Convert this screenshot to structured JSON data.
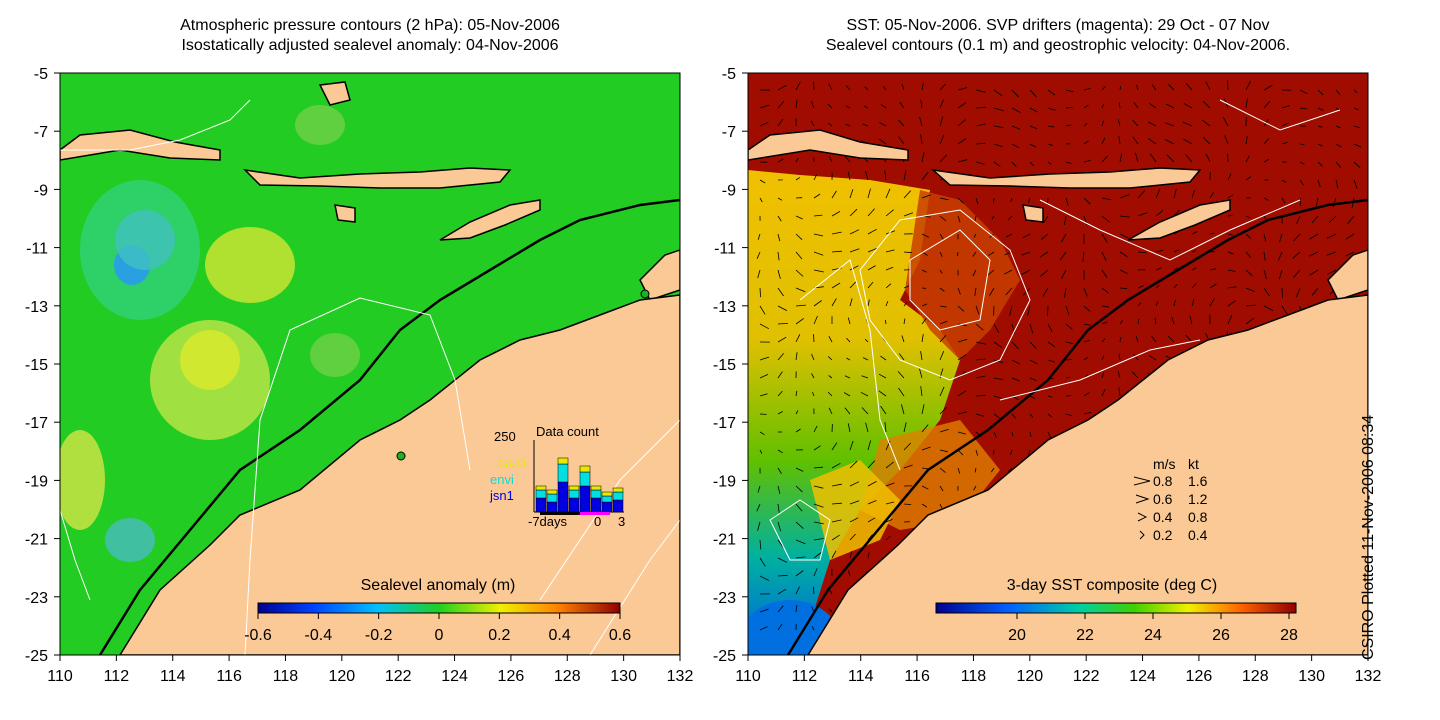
{
  "left_panel": {
    "title_line1": "Atmospheric pressure contours (2 hPa): 05-Nov-2006",
    "title_line2": "Isostatically adjusted sealevel anomaly: 04-Nov-2006",
    "colorbar_label": "Sealevel anomaly (m)",
    "colorbar_ticks": [
      "-0.6",
      "-0.4",
      "-0.2",
      "0",
      "0.2",
      "0.4",
      "0.6"
    ],
    "inset": {
      "title": "Data count",
      "y_label": "250",
      "legend": [
        {
          "name": "GFO",
          "color": "#e8e800"
        },
        {
          "name": "envi",
          "color": "#00e0e0"
        },
        {
          "name": "jsn1",
          "color": "#0000e0"
        }
      ],
      "x_labels": [
        "-7days",
        "0",
        "3"
      ]
    }
  },
  "right_panel": {
    "title_line1": "SST: 05-Nov-2006. SVP drifters (magenta): 29 Oct - 07 Nov",
    "title_line2": "Sealevel contours (0.1 m) and geostrophic velocity: 04-Nov-2006.",
    "colorbar_label": "3-day SST composite (deg C)",
    "colorbar_ticks": [
      "20",
      "22",
      "24",
      "26",
      "28"
    ],
    "velocity_legend": {
      "header_ms": "m/s",
      "header_kt": "kt",
      "rows": [
        {
          "ms": "0.8",
          "kt": "1.6"
        },
        {
          "ms": "0.6",
          "kt": "1.2"
        },
        {
          "ms": "0.4",
          "kt": "0.8"
        },
        {
          "ms": "0.2",
          "kt": "0.4"
        }
      ]
    }
  },
  "axes": {
    "x_ticks": [
      "110",
      "112",
      "114",
      "116",
      "118",
      "120",
      "122",
      "124",
      "126",
      "128",
      "130",
      "132"
    ],
    "y_ticks": [
      "-5",
      "-7",
      "-9",
      "-11",
      "-13",
      "-15",
      "-17",
      "-19",
      "-21",
      "-23",
      "-25"
    ]
  },
  "credit": "CSIRO Plotted 11-Nov-2006 08:34",
  "colors": {
    "land": "#fbc995",
    "sea_anomaly_base": "#22cc22",
    "sst_warm": "#a00c00"
  }
}
